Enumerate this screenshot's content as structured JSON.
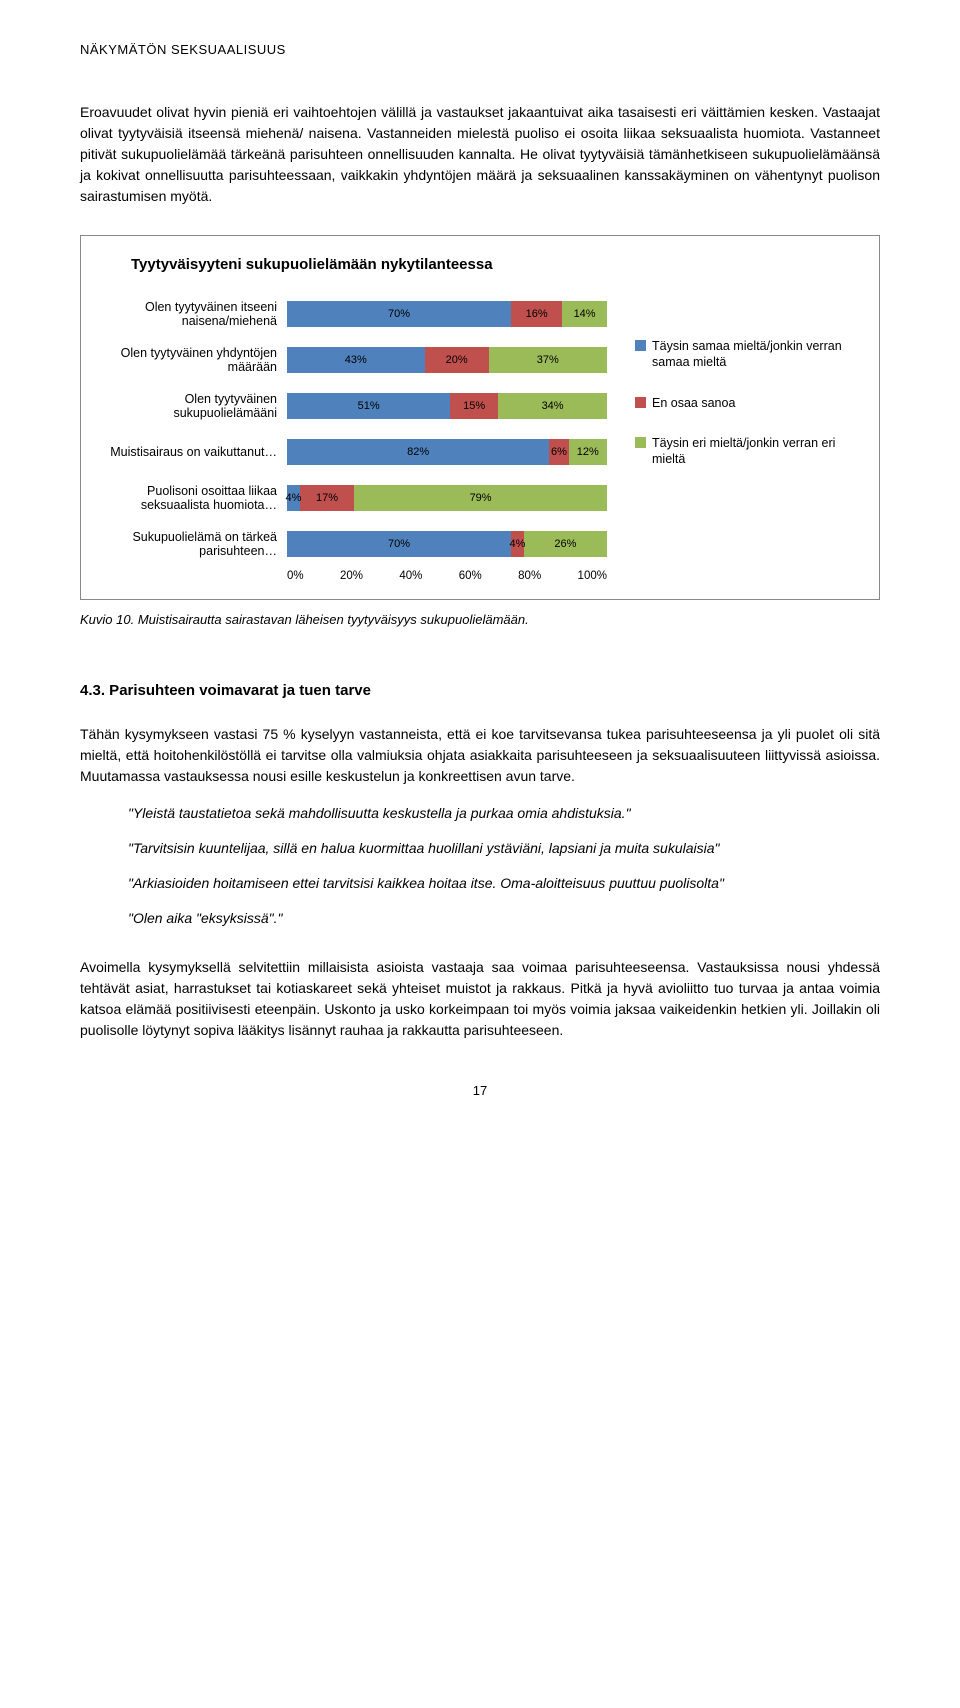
{
  "header": {
    "title": "NÄKYMÄTÖN SEKSUAALISUUS"
  },
  "para1": "Eroavuudet olivat hyvin pieniä eri vaihtoehtojen välillä ja vastaukset jakaantuivat aika tasaisesti eri väittämien kesken. Vastaajat olivat tyytyväisiä itseensä miehenä/ naisena. Vastanneiden mielestä puoliso ei osoita liikaa seksuaalista huomiota. Vastanneet pitivät sukupuolielämää tärkeänä parisuhteen onnellisuuden kannalta. He olivat tyytyväisiä tämänhetkiseen sukupuolielämäänsä ja kokivat onnellisuutta parisuhteessaan, vaikkakin yhdyntöjen määrä ja seksuaalinen kanssakäyminen on vähentynyt puolison sairastumisen myötä.",
  "chart": {
    "title": "Tyytyväisyyteni sukupuolielämään nykytilanteessa",
    "colors": {
      "agree": "#4f81bd",
      "neutral": "#c0504d",
      "disagree": "#9bbb59"
    },
    "rows": [
      {
        "label": "Olen tyytyväinen itseeni naisena/miehenä",
        "segs": [
          {
            "v": 70,
            "c": "agree",
            "t": "70%"
          },
          {
            "v": 16,
            "c": "neutral",
            "t": "16%"
          },
          {
            "v": 14,
            "c": "disagree",
            "t": "14%"
          }
        ]
      },
      {
        "label": "Olen tyytyväinen yhdyntöjen määrään",
        "segs": [
          {
            "v": 43,
            "c": "agree",
            "t": "43%"
          },
          {
            "v": 20,
            "c": "neutral",
            "t": "20%"
          },
          {
            "v": 37,
            "c": "disagree",
            "t": "37%"
          }
        ]
      },
      {
        "label": "Olen tyytyväinen sukupuolielämääni",
        "segs": [
          {
            "v": 51,
            "c": "agree",
            "t": "51%"
          },
          {
            "v": 15,
            "c": "neutral",
            "t": "15%"
          },
          {
            "v": 34,
            "c": "disagree",
            "t": "34%"
          }
        ]
      },
      {
        "label": "Muistisairaus on vaikuttanut…",
        "segs": [
          {
            "v": 82,
            "c": "agree",
            "t": "82%"
          },
          {
            "v": 6,
            "c": "neutral",
            "t": "6%"
          },
          {
            "v": 12,
            "c": "disagree",
            "t": "12%"
          }
        ]
      },
      {
        "label": "Puolisoni osoittaa liikaa seksuaalista huomiota…",
        "segs": [
          {
            "v": 4,
            "c": "agree",
            "t": "4%"
          },
          {
            "v": 17,
            "c": "neutral",
            "t": "17%"
          },
          {
            "v": 79,
            "c": "disagree",
            "t": "79%"
          }
        ]
      },
      {
        "label": "Sukupuolielämä on tärkeä parisuhteen…",
        "segs": [
          {
            "v": 70,
            "c": "agree",
            "t": "70%"
          },
          {
            "v": 4,
            "c": "neutral",
            "t": "4%"
          },
          {
            "v": 26,
            "c": "disagree",
            "t": "26%"
          }
        ]
      }
    ],
    "legend": [
      {
        "c": "agree",
        "t": "Täysin samaa mieltä/jonkin verran samaa mieltä"
      },
      {
        "c": "neutral",
        "t": "En osaa sanoa"
      },
      {
        "c": "disagree",
        "t": "Täysin eri mieltä/jonkin verran eri mieltä"
      }
    ],
    "xticks": [
      "0%",
      "20%",
      "40%",
      "60%",
      "80%",
      "100%"
    ]
  },
  "caption": "Kuvio 10. Muistisairautta sairastavan läheisen tyytyväisyys sukupuolielämään.",
  "section_h": "4.3. Parisuhteen voimavarat ja tuen tarve",
  "para2": "Tähän kysymykseen vastasi 75 % kyselyyn vastanneista, että ei koe tarvitsevansa tukea parisuhteeseensa ja yli puolet oli sitä mieltä, että hoitohenkilöstöllä ei tarvitse olla valmiuksia ohjata asiakkaita parisuhteeseen ja seksuaalisuuteen liittyvissä asioissa. Muutamassa vastauksessa nousi esille keskustelun ja konkreettisen avun tarve.",
  "quotes": [
    "\"Yleistä taustatietoa sekä mahdollisuutta keskustella ja purkaa omia ahdistuksia.\"",
    "\"Tarvitsisin kuuntelijaa, sillä en halua kuormittaa huolillani ystäviäni, lapsiani ja muita sukulaisia\"",
    "\"Arkiasioiden hoitamiseen ettei tarvitsisi kaikkea hoitaa itse. Oma-aloitteisuus puuttuu puolisolta\"",
    "\"Olen aika \"eksyksissä\".\""
  ],
  "para3": "Avoimella kysymyksellä selvitettiin millaisista asioista vastaaja saa voimaa parisuhteeseensa. Vastauksissa nousi yhdessä tehtävät asiat, harrastukset tai kotiaskareet sekä yhteiset muistot ja rakkaus. Pitkä ja hyvä avioliitto tuo turvaa ja antaa voimia katsoa elämää positiivisesti eteenpäin. Uskonto ja usko korkeimpaan toi myös voimia jaksaa vaikeidenkin hetkien yli. Joillakin oli puolisolle löytynyt sopiva lääkitys lisännyt rauhaa ja rakkautta parisuhteeseen.",
  "pagenum": "17"
}
